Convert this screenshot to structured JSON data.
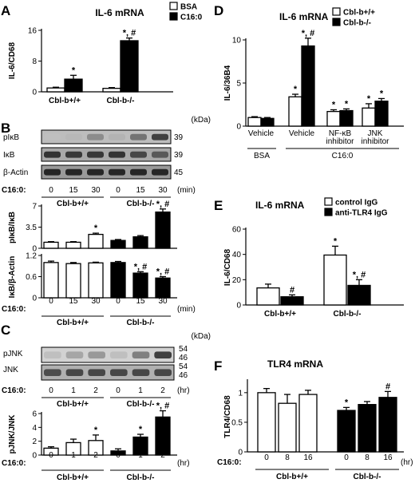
{
  "figure_text": {
    "A": "A",
    "B": "B",
    "C": "C",
    "D": "D",
    "E": "E",
    "F": "F",
    "kda": "(kDa)",
    "min": "(min)",
    "hr": "(hr)",
    "c16": "C16:0:",
    "cbl_wt": "Cbl-b+/+",
    "cbl_ko": "Cbl-b-/-"
  },
  "blots": {
    "B": {
      "rows": [
        {
          "label": "pIκB",
          "mw": "39"
        },
        {
          "label": "IκB",
          "mw": "39"
        },
        {
          "label": "β-Actin",
          "mw": "45"
        }
      ],
      "lanes": [
        "0",
        "15",
        "30",
        "0",
        "15",
        "30"
      ]
    },
    "C": {
      "rows": [
        {
          "label": "pJNK",
          "mw": "54",
          "mw2": "46"
        },
        {
          "label": "JNK",
          "mw": "54",
          "mw2": "46"
        }
      ],
      "lanes": [
        "0",
        "1",
        "2",
        "0",
        "1",
        "2"
      ]
    }
  },
  "chart_data": [
    {
      "panel": "A",
      "type": "bar",
      "title": "IL-6 mRNA",
      "ylabel": "IL-6/CD68",
      "ylim": [
        0,
        16
      ],
      "yticks": [
        "0",
        "8",
        "16"
      ],
      "groups": [
        "Cbl-b+/+",
        "Cbl-b-/-"
      ],
      "series": [
        {
          "name": "BSA",
          "fill": "#ffffff",
          "values": [
            1,
            0.9
          ],
          "err": [
            0.2,
            0.2
          ],
          "marks": [
            "",
            ""
          ]
        },
        {
          "name": "C16:0",
          "fill": "#000000",
          "values": [
            3.3,
            13.3
          ],
          "err": [
            1.0,
            0.7
          ],
          "marks": [
            "*",
            "*, #"
          ]
        }
      ]
    },
    {
      "panel": "B1",
      "type": "bar",
      "ylabel": "pIκB/IκB",
      "ylim": [
        0,
        7
      ],
      "yticks": [
        "0",
        "3.5",
        "7"
      ],
      "x": [
        "0",
        "15",
        "30",
        "0",
        "15",
        "30"
      ],
      "values": [
        1,
        1,
        2.3,
        1.3,
        1.9,
        6
      ],
      "err": [
        0.1,
        0.1,
        0.2,
        0.15,
        0.2,
        0.5
      ],
      "fills": [
        "#ffffff",
        "#ffffff",
        "#ffffff",
        "#000000",
        "#000000",
        "#000000"
      ],
      "marks": [
        "",
        "",
        "*",
        "",
        "",
        "*, #"
      ]
    },
    {
      "panel": "B2",
      "type": "bar",
      "ylabel": "IκB/β-Actin",
      "ylim": [
        0,
        1.2
      ],
      "yticks": [
        "0",
        "0.6",
        "1.2"
      ],
      "x": [
        "0",
        "15",
        "30",
        "0",
        "15",
        "30"
      ],
      "values": [
        1.0,
        0.97,
        0.99,
        1.0,
        0.7,
        0.56
      ],
      "err": [
        0.04,
        0.03,
        0.02,
        0.03,
        0.04,
        0.04
      ],
      "fills": [
        "#ffffff",
        "#ffffff",
        "#ffffff",
        "#000000",
        "#000000",
        "#000000"
      ],
      "marks": [
        "",
        "",
        "",
        "",
        "*, #",
        "*, #"
      ]
    },
    {
      "panel": "C",
      "type": "bar",
      "ylabel": "pJNK/JNK",
      "ylim": [
        0,
        6
      ],
      "yticks": [
        "0",
        "2",
        "4",
        "6"
      ],
      "x": [
        "0",
        "1",
        "2",
        "0",
        "1",
        "2"
      ],
      "values": [
        1.0,
        1.8,
        2.1,
        0.6,
        2.6,
        5.5
      ],
      "err": [
        0.2,
        0.5,
        0.8,
        0.3,
        0.4,
        0.9
      ],
      "fills": [
        "#ffffff",
        "#ffffff",
        "#ffffff",
        "#000000",
        "#000000",
        "#000000"
      ],
      "marks": [
        "",
        "",
        "*",
        "",
        "*",
        "*, #"
      ]
    },
    {
      "panel": "D",
      "type": "bar",
      "title": "IL-6 mRNA",
      "ylabel": "IL-6/36B4",
      "ylim": [
        0,
        10
      ],
      "yticks": [
        "0",
        "5",
        "10"
      ],
      "groups": [
        "Vehicle",
        "Vehicle",
        "NF-κB inhibitor",
        "JNK inhibitor"
      ],
      "supergroups": [
        "BSA",
        "C16:0"
      ],
      "series": [
        {
          "name": "Cbl-b+/+",
          "fill": "#ffffff",
          "values": [
            1.0,
            3.4,
            1.7,
            2.1
          ],
          "err": [
            0.1,
            0.3,
            0.2,
            0.5
          ],
          "marks": [
            "",
            "*",
            "*",
            "*"
          ]
        },
        {
          "name": "Cbl-b-/-",
          "fill": "#000000",
          "values": [
            0.9,
            9.3,
            1.8,
            2.9
          ],
          "err": [
            0.1,
            0.9,
            0.2,
            0.3
          ],
          "marks": [
            "",
            "*, #",
            "*",
            "*"
          ]
        }
      ]
    },
    {
      "panel": "E",
      "type": "bar",
      "title": "IL-6 mRNA",
      "ylabel": "IL-6/CD68",
      "ylim": [
        0,
        60
      ],
      "yticks": [
        "0",
        "20",
        "40",
        "60"
      ],
      "groups": [
        "Cbl-b+/+",
        "Cbl-b-/-"
      ],
      "series": [
        {
          "name": "control IgG",
          "fill": "#ffffff",
          "values": [
            13.5,
            39.5
          ],
          "err": [
            3.0,
            7.0
          ],
          "marks": [
            "",
            "*"
          ]
        },
        {
          "name": "anti-TLR4 IgG",
          "fill": "#000000",
          "values": [
            6.5,
            15.5
          ],
          "err": [
            1.5,
            4.5
          ],
          "marks": [
            "#",
            "*, #"
          ]
        }
      ]
    },
    {
      "panel": "F",
      "type": "bar",
      "title": "TLR4 mRNA",
      "ylabel": "TLR4/CD68",
      "ylim": [
        0,
        1.2
      ],
      "yticks": [
        "0",
        "0.5",
        "1"
      ],
      "x": [
        "0",
        "8",
        "16",
        "0",
        "8",
        "16"
      ],
      "values": [
        1.0,
        0.82,
        0.97,
        0.7,
        0.8,
        0.92
      ],
      "err": [
        0.07,
        0.15,
        0.07,
        0.05,
        0.05,
        0.1
      ],
      "fills": [
        "#ffffff",
        "#ffffff",
        "#ffffff",
        "#000000",
        "#000000",
        "#000000"
      ],
      "marks": [
        "",
        "",
        "",
        "*",
        "",
        "#"
      ]
    }
  ]
}
